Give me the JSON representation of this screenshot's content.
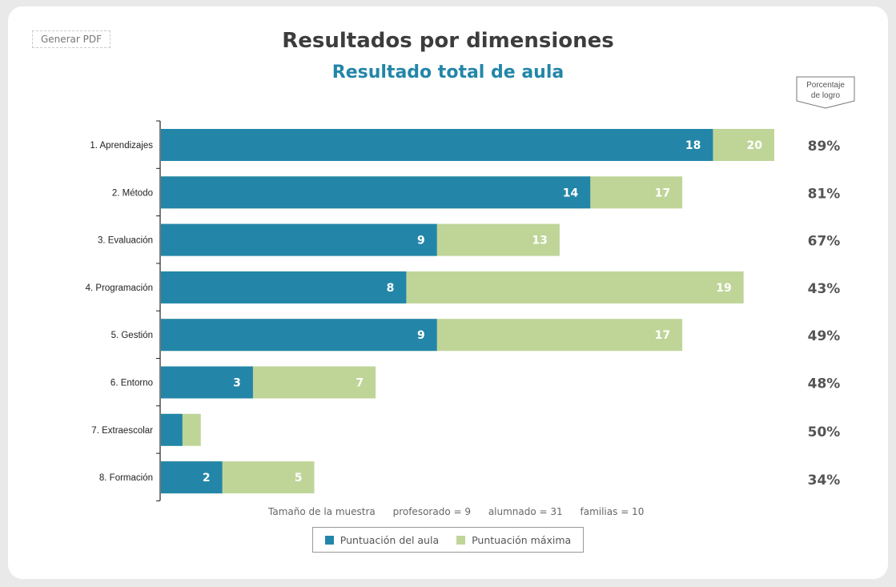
{
  "toolbar": {
    "pdf_label": "Generar PDF"
  },
  "colors": {
    "aula": "#2386a8",
    "max": "#bfd598"
  },
  "chart_data": {
    "type": "bar",
    "stacked": "overlay",
    "orientation": "horizontal",
    "title": "Resultados por dimensiones",
    "subtitle": "Resultado total de aula",
    "pct_header": "Porcentaje de logro",
    "categories": [
      "1. Aprendizajes",
      "2. Método",
      "3. Evaluación",
      "4. Programación",
      "5. Gestión",
      "6. Entorno",
      "7. Extraescolar",
      "8. Formación"
    ],
    "series": [
      {
        "name": "Puntuación del aula",
        "values": [
          18,
          14,
          9,
          8,
          9,
          3,
          0.7,
          2
        ],
        "labels": [
          "18",
          "14",
          "9",
          "8",
          "9",
          "3",
          "",
          "2"
        ]
      },
      {
        "name": "Puntuación máxima",
        "values": [
          20,
          17,
          13,
          19,
          17,
          7,
          1.3,
          5
        ],
        "labels": [
          "20",
          "17",
          "13",
          "19",
          "17",
          "7",
          "",
          "5"
        ]
      }
    ],
    "percentages": [
      "89%",
      "81%",
      "67%",
      "43%",
      "49%",
      "48%",
      "50%",
      "34%"
    ],
    "legend": [
      "Puntuación del aula",
      "Puntuación máxima"
    ],
    "legend_position": "bottom"
  },
  "sample": {
    "label": "Tamaño de la muestra",
    "profesorado": "profesorado = 9",
    "alumnado": "alumnado = 31",
    "familias": "familias = 10"
  }
}
